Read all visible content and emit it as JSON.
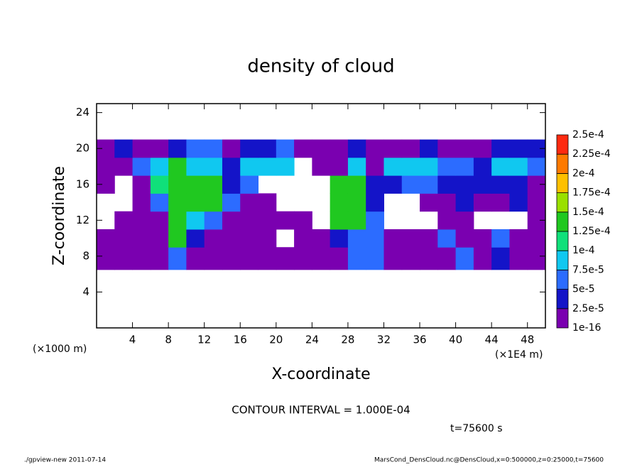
{
  "chart_data": {
    "type": "contour",
    "title": "density of cloud",
    "x_label": "X-coordinate",
    "y_label": "Z-coordinate",
    "y_unit": "(×1000 m)",
    "x_unit": "(×1E4 m)",
    "contour_interval": "CONTOUR INTERVAL = 1.000E-04",
    "time_label": "t=75600 s",
    "footer_left": "./gpview-new  2011-07-14",
    "footer_right": "MarsCond_DensCloud.nc@DensCloud,x=0:500000,z=0:25000,t=75600",
    "xlim": [
      0,
      50
    ],
    "ylim": [
      0,
      25
    ],
    "xticks": [
      4,
      8,
      12,
      16,
      20,
      24,
      28,
      32,
      36,
      40,
      44,
      48
    ],
    "yticks": [
      4,
      8,
      12,
      16,
      20,
      24
    ],
    "x_edges": [
      0,
      2,
      4,
      6,
      8,
      10,
      12,
      14,
      16,
      18,
      20,
      22,
      24,
      26,
      28,
      30,
      32,
      34,
      36,
      38,
      40,
      42,
      44,
      46,
      48,
      50
    ],
    "z_edges": [
      6.5,
      9,
      11,
      13,
      15,
      17,
      19,
      21
    ],
    "z": [
      [
        1e-05,
        1e-05,
        1e-05,
        1e-05,
        6e-05,
        1e-05,
        1e-05,
        1e-05,
        1e-05,
        1e-05,
        1e-05,
        1e-05,
        1e-05,
        1e-05,
        6e-05,
        6e-05,
        1e-05,
        1e-05,
        1e-05,
        1e-05,
        6e-05,
        1e-05,
        3e-05,
        1e-05,
        1e-05
      ],
      [
        1e-05,
        1e-05,
        1e-05,
        1e-05,
        0.000135,
        3e-05,
        1e-05,
        1e-05,
        1e-05,
        1e-05,
        0,
        1e-05,
        1e-05,
        3e-05,
        6e-05,
        6e-05,
        1e-05,
        1e-05,
        1e-05,
        6e-05,
        1e-05,
        1e-05,
        6e-05,
        1e-05,
        1e-05
      ],
      [
        0,
        1e-05,
        1e-05,
        1e-05,
        0.000135,
        8.5e-05,
        6e-05,
        1e-05,
        1e-05,
        1e-05,
        1e-05,
        1e-05,
        0,
        0.000135,
        0.000135,
        6e-05,
        0,
        0,
        0,
        1e-05,
        1e-05,
        0,
        0,
        0,
        1e-05
      ],
      [
        0,
        0,
        1e-05,
        6e-05,
        0.000135,
        0.000135,
        0.000135,
        6e-05,
        1e-05,
        1e-05,
        0,
        0,
        0,
        0.000135,
        0.000135,
        3e-05,
        0,
        0,
        1e-05,
        1e-05,
        3e-05,
        1e-05,
        1e-05,
        3e-05,
        1e-05
      ],
      [
        1e-05,
        0,
        1e-05,
        0.00011,
        0.000135,
        0.000135,
        0.000135,
        3e-05,
        6e-05,
        0,
        0,
        0,
        0,
        0.000135,
        0.000135,
        3e-05,
        3e-05,
        6e-05,
        6e-05,
        3e-05,
        3e-05,
        3e-05,
        3e-05,
        3e-05,
        1e-05
      ],
      [
        1e-05,
        1e-05,
        6e-05,
        8.5e-05,
        0.000135,
        8.5e-05,
        8.5e-05,
        3e-05,
        8.5e-05,
        8.5e-05,
        8.5e-05,
        0,
        1e-05,
        1e-05,
        8.5e-05,
        1e-05,
        8.5e-05,
        8.5e-05,
        8.5e-05,
        6e-05,
        6e-05,
        3e-05,
        8.5e-05,
        8.5e-05,
        6e-05
      ],
      [
        1e-05,
        3e-05,
        1e-05,
        1e-05,
        3e-05,
        6e-05,
        6e-05,
        1e-05,
        3e-05,
        3e-05,
        6e-05,
        1e-05,
        1e-05,
        1e-05,
        3e-05,
        1e-05,
        1e-05,
        1e-05,
        3e-05,
        1e-05,
        1e-05,
        1e-05,
        3e-05,
        3e-05,
        3e-05
      ]
    ],
    "levels": [
      {
        "value": 1e-16,
        "label": "1e-16"
      },
      {
        "value": 2.5e-05,
        "label": "2.5e-5"
      },
      {
        "value": 5e-05,
        "label": "5e-5"
      },
      {
        "value": 7.5e-05,
        "label": "7.5e-5"
      },
      {
        "value": 0.0001,
        "label": "1e-4"
      },
      {
        "value": 0.000125,
        "label": "1.25e-4"
      },
      {
        "value": 0.00015,
        "label": "1.5e-4"
      },
      {
        "value": 0.000175,
        "label": "1.75e-4"
      },
      {
        "value": 0.0002,
        "label": "2e-4"
      },
      {
        "value": 0.000225,
        "label": "2.25e-4"
      },
      {
        "value": 0.00025,
        "label": "2.5e-4"
      }
    ],
    "colors": [
      "#7a00b0",
      "#1414c8",
      "#2c6cff",
      "#10c8f0",
      "#10e07a",
      "#20c820",
      "#9ae000",
      "#ffc000",
      "#ff7a00",
      "#ff2a10"
    ]
  }
}
